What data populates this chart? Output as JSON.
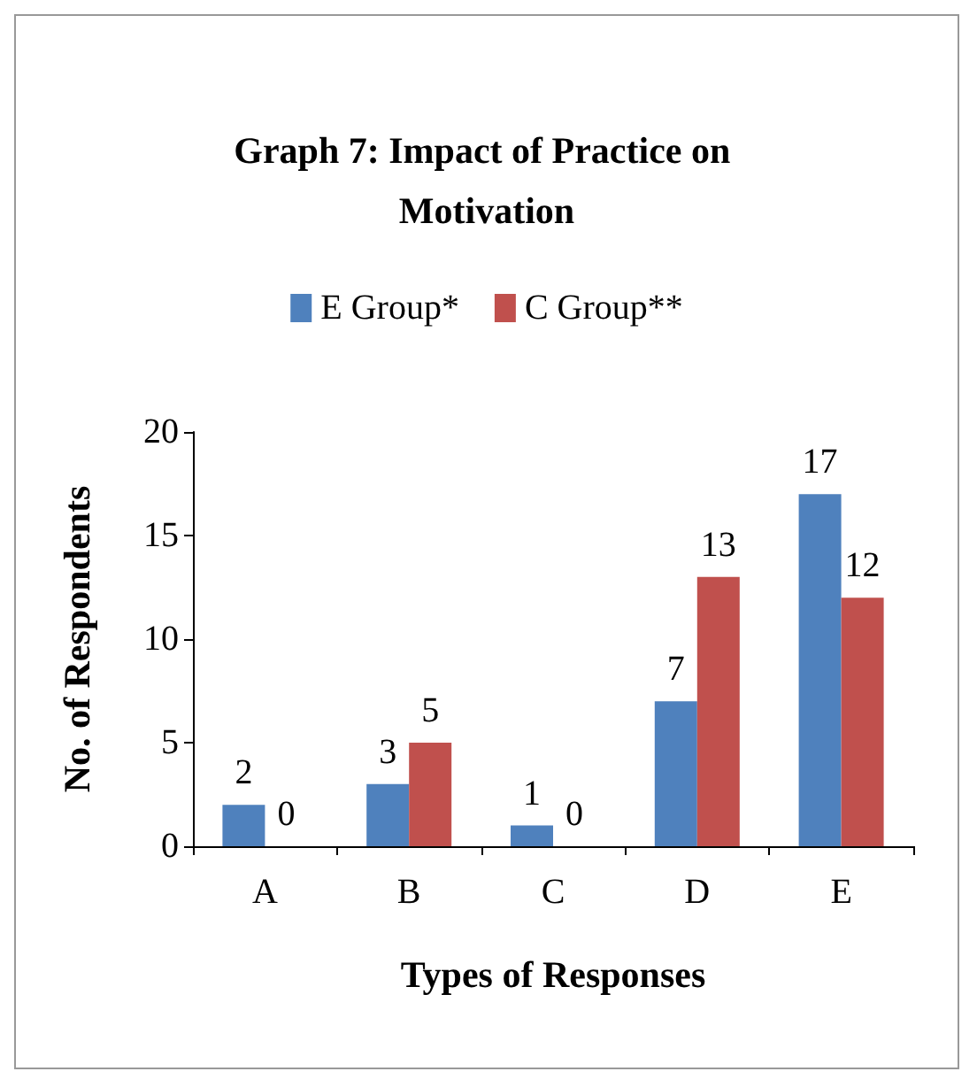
{
  "chart_data": {
    "type": "bar",
    "title": "Graph 7: Impact of Practice on Motivation",
    "xlabel": "Types of Responses",
    "ylabel": "No. of Respondents",
    "categories": [
      "A",
      "B",
      "C",
      "D",
      "E"
    ],
    "series": [
      {
        "name": "E Group*",
        "color": "#4f81bd",
        "values": [
          2,
          3,
          1,
          7,
          17
        ]
      },
      {
        "name": "C Group**",
        "color": "#c0504d",
        "values": [
          0,
          5,
          0,
          13,
          12
        ]
      }
    ],
    "ylim": [
      0,
      20
    ],
    "yticks": [
      0,
      5,
      10,
      15,
      20
    ],
    "grid": false,
    "legend": "top",
    "data_labels": true
  }
}
